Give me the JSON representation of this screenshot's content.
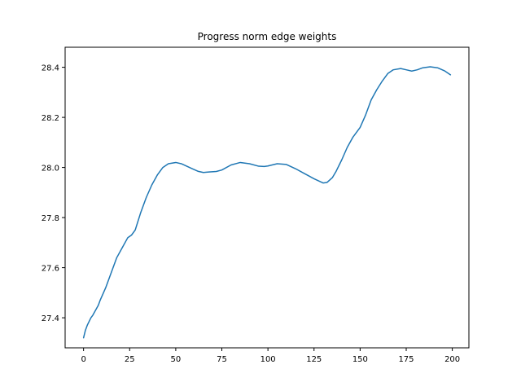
{
  "chart_data": {
    "type": "line",
    "title": "Progress norm edge weights",
    "xlabel": "",
    "ylabel": "",
    "xlim": [
      -10,
      209
    ],
    "ylim": [
      27.28,
      28.48
    ],
    "x_ticks": [
      0,
      25,
      50,
      75,
      100,
      125,
      150,
      175,
      200
    ],
    "y_ticks": [
      27.4,
      27.6,
      27.8,
      28.0,
      28.2,
      28.4
    ],
    "grid": false,
    "line_color": "#1f77b4",
    "series": [
      {
        "x": [
          0,
          1,
          2,
          4,
          5,
          8,
          9,
          12,
          15,
          18,
          21,
          24,
          26,
          28,
          31,
          34,
          37,
          40,
          43,
          46,
          50,
          53,
          56,
          59,
          62,
          65,
          68,
          72,
          75,
          80,
          85,
          90,
          95,
          98,
          100,
          105,
          110,
          115,
          120,
          125,
          130,
          132,
          135,
          137,
          140,
          143,
          146,
          150,
          153,
          156,
          159,
          162,
          165,
          168,
          172,
          175,
          178,
          181,
          184,
          188,
          192,
          196,
          199
        ],
        "y": [
          27.32,
          27.35,
          27.37,
          27.4,
          27.41,
          27.45,
          27.47,
          27.52,
          27.58,
          27.64,
          27.68,
          27.72,
          27.73,
          27.75,
          27.82,
          27.88,
          27.93,
          27.97,
          28.0,
          28.015,
          28.02,
          28.015,
          28.005,
          27.995,
          27.985,
          27.98,
          27.982,
          27.984,
          27.99,
          28.01,
          28.02,
          28.015,
          28.005,
          28.004,
          28.006,
          28.015,
          28.012,
          27.995,
          27.975,
          27.955,
          27.938,
          27.94,
          27.96,
          27.985,
          28.03,
          28.08,
          28.12,
          28.16,
          28.21,
          28.27,
          28.31,
          28.345,
          28.375,
          28.39,
          28.395,
          28.39,
          28.385,
          28.39,
          28.398,
          28.402,
          28.398,
          28.385,
          28.37
        ]
      }
    ]
  }
}
